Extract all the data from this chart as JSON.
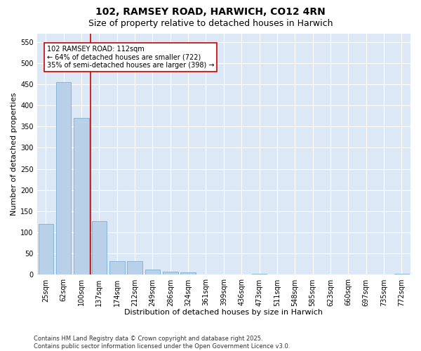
{
  "title": "102, RAMSEY ROAD, HARWICH, CO12 4RN",
  "subtitle": "Size of property relative to detached houses in Harwich",
  "xlabel": "Distribution of detached houses by size in Harwich",
  "ylabel": "Number of detached properties",
  "categories": [
    "25sqm",
    "62sqm",
    "100sqm",
    "137sqm",
    "174sqm",
    "212sqm",
    "249sqm",
    "286sqm",
    "324sqm",
    "361sqm",
    "399sqm",
    "436sqm",
    "473sqm",
    "511sqm",
    "548sqm",
    "585sqm",
    "623sqm",
    "660sqm",
    "697sqm",
    "735sqm",
    "772sqm"
  ],
  "values": [
    120,
    455,
    370,
    127,
    33,
    33,
    12,
    8,
    5,
    1,
    0,
    0,
    2,
    0,
    1,
    0,
    0,
    0,
    0,
    0,
    3
  ],
  "bar_color": "#b8d0e8",
  "bar_edgecolor": "#7aafd4",
  "property_line_x": 2.5,
  "annotation_text": "102 RAMSEY ROAD: 112sqm\n← 64% of detached houses are smaller (722)\n35% of semi-detached houses are larger (398) →",
  "annotation_box_facecolor": "#ffffff",
  "annotation_box_edgecolor": "#cc0000",
  "property_line_color": "#cc0000",
  "ylim": [
    0,
    570
  ],
  "yticks": [
    0,
    50,
    100,
    150,
    200,
    250,
    300,
    350,
    400,
    450,
    500,
    550
  ],
  "fig_background": "#ffffff",
  "ax_background": "#dce8f5",
  "grid_color": "#ffffff",
  "footer": "Contains HM Land Registry data © Crown copyright and database right 2025.\nContains public sector information licensed under the Open Government Licence v3.0.",
  "title_fontsize": 10,
  "subtitle_fontsize": 9,
  "xlabel_fontsize": 8,
  "ylabel_fontsize": 8,
  "tick_fontsize": 7,
  "annotation_fontsize": 7,
  "footer_fontsize": 6
}
